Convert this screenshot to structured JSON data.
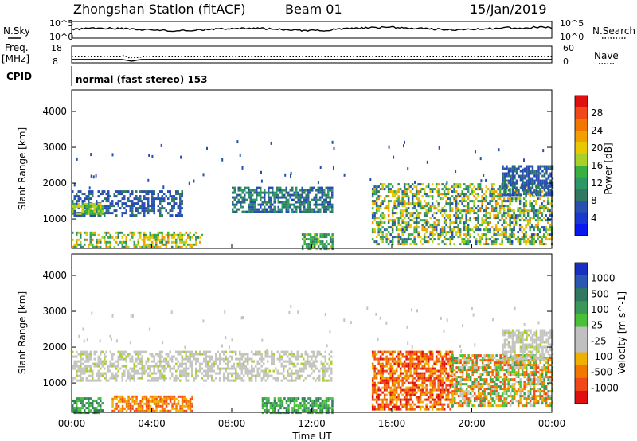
{
  "header": {
    "station": "Zhongshan Station (fitACF)",
    "beam": "Beam 01",
    "date": "15/Jan/2019"
  },
  "top_panels": {
    "nsky_label": "N.Sky",
    "nsky_ticks": [
      "10^5",
      "10^0"
    ],
    "nsearch_label": "N.Search",
    "nsearch_ticks": [
      "10^5",
      "10^0"
    ],
    "freq_label_1": "Freq.",
    "freq_label_2": "[MHz]",
    "freq_ticks": [
      "18",
      "8"
    ],
    "nave_label": "Nave",
    "nave_ticks": [
      "60",
      "0"
    ],
    "cpid_label": "CPID",
    "cpid_text": "normal (fast stereo) 153"
  },
  "colorbars": {
    "power": {
      "label": "Power [dB]",
      "ticks": [
        "28",
        "24",
        "20",
        "16",
        "12",
        "8",
        "4"
      ],
      "colors": [
        "#e01010",
        "#f04818",
        "#f07800",
        "#f0a000",
        "#e8c800",
        "#a8d028",
        "#38b040",
        "#2c9868",
        "#307860",
        "#2850b0",
        "#1838d0",
        "#0818f0"
      ]
    },
    "velocity": {
      "label": "Velocity [m s^-1]",
      "ticks": [
        "1000",
        "500",
        "100",
        "25",
        "-25",
        "-100",
        "-500",
        "-1000"
      ],
      "colors": [
        "#1830c0",
        "#2a58b0",
        "#307860",
        "#3a9858",
        "#48c038",
        "#c0c0c0",
        "#c0c0c0",
        "#f0b000",
        "#f07800",
        "#f04818",
        "#e01010"
      ]
    }
  },
  "chart_data": [
    {
      "type": "line",
      "title": "",
      "ylabel": "N.Sky / N.Search",
      "x_range_hours": [
        0,
        24
      ],
      "ylim_log10": [
        0,
        5
      ],
      "notes": "near-constant noise level around 10^2-10^3 throughout the day"
    },
    {
      "type": "line",
      "ylabel": "Freq. [MHz]",
      "ylim": [
        8,
        18
      ],
      "y2label": "Nave",
      "y2lim": [
        0,
        60
      ],
      "series": [
        {
          "name": "Freq.",
          "x": [
            0,
            2.5,
            3.0,
            3.5,
            24
          ],
          "values": [
            10,
            10,
            9,
            10,
            10
          ]
        },
        {
          "name": "Nave",
          "x": [
            0,
            2.5,
            3.0,
            3.5,
            24
          ],
          "values": [
            24,
            24,
            18,
            24,
            24
          ]
        }
      ]
    },
    {
      "type": "heatmap",
      "ylabel": "Slant Range [km]",
      "xlabel": "",
      "ylim": [
        180,
        4600
      ],
      "yticks": [
        1000,
        2000,
        3000,
        4000
      ],
      "x_range_hours": [
        0,
        24
      ],
      "colorbar": "Power [dB]",
      "regions": [
        {
          "t": [
            0,
            5.5
          ],
          "r": [
            1100,
            1800
          ],
          "level": "4-8",
          "mix": "some 12-16"
        },
        {
          "t": [
            0,
            1.5
          ],
          "r": [
            1150,
            1450
          ],
          "level": "12-20"
        },
        {
          "t": [
            0,
            6.5
          ],
          "r": [
            200,
            650
          ],
          "level": "8-24"
        },
        {
          "t": [
            8,
            13
          ],
          "r": [
            1200,
            1900
          ],
          "level": "4-12"
        },
        {
          "t": [
            11.5,
            13
          ],
          "r": [
            200,
            600
          ],
          "level": "8-16"
        },
        {
          "t": [
            15,
            24
          ],
          "r": [
            300,
            2000
          ],
          "level": "4-24"
        },
        {
          "t": [
            21.5,
            24
          ],
          "r": [
            1700,
            2500
          ],
          "level": "4-8"
        }
      ]
    },
    {
      "type": "heatmap",
      "ylabel": "Slant Range [km]",
      "xlabel": "Time UT",
      "ylim": [
        180,
        4600
      ],
      "yticks": [
        1000,
        2000,
        3000,
        4000
      ],
      "x_range_hours": [
        0,
        24
      ],
      "xticks": [
        "00:00",
        "04:00",
        "08:00",
        "12:00",
        "16:00",
        "20:00",
        "00:00"
      ],
      "colorbar": "Velocity [m s^-1]",
      "regions": [
        {
          "t": [
            0,
            13
          ],
          "r": [
            1100,
            1900
          ],
          "level": "-25 to 25 (grey)"
        },
        {
          "t": [
            0,
            1.5
          ],
          "r": [
            200,
            600
          ],
          "level": "100-500"
        },
        {
          "t": [
            2,
            6
          ],
          "r": [
            200,
            650
          ],
          "level": "-100 to -500"
        },
        {
          "t": [
            9.5,
            13
          ],
          "r": [
            200,
            600
          ],
          "level": "100-500"
        },
        {
          "t": [
            15,
            19
          ],
          "r": [
            300,
            1900
          ],
          "level": "-100 to -1000"
        },
        {
          "t": [
            19,
            24
          ],
          "r": [
            400,
            1800
          ],
          "level": "mixed -500 to 500"
        },
        {
          "t": [
            21.5,
            24
          ],
          "r": [
            1700,
            2500
          ],
          "level": "-25 to 25 (grey)"
        }
      ]
    }
  ]
}
